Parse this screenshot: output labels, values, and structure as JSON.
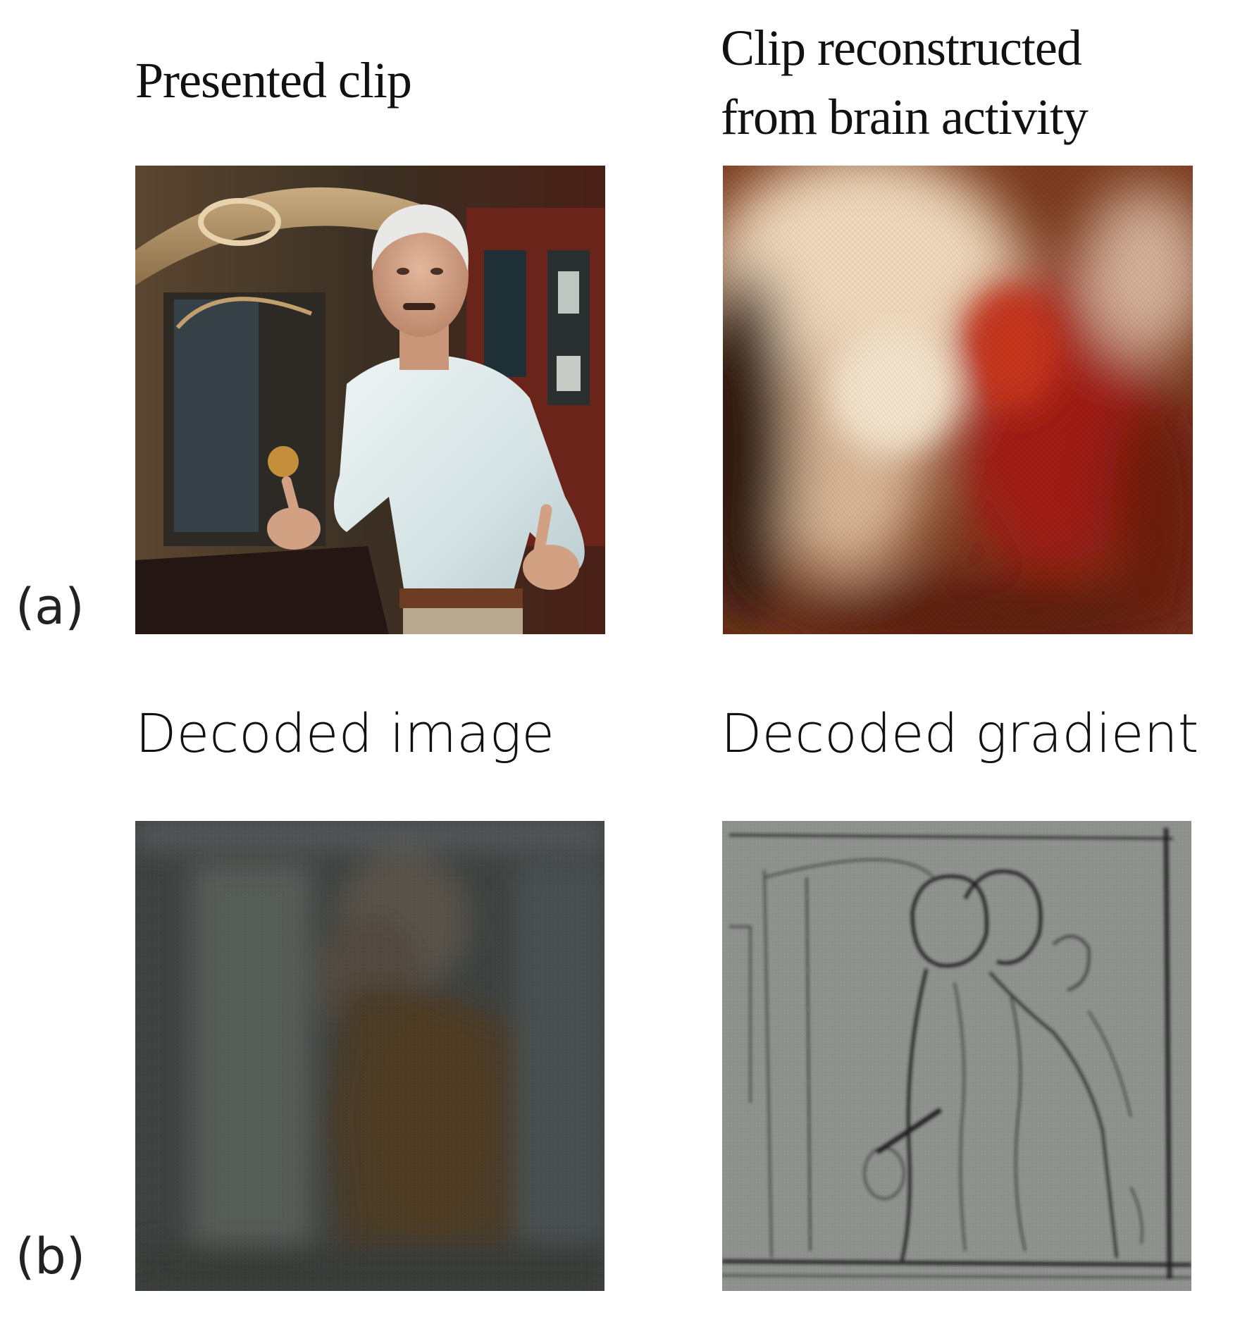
{
  "figure": {
    "panel_a": {
      "label": "(a)",
      "left_title": "Presented clip",
      "right_title_line1": "Clip reconstructed",
      "right_title_line2": "from brain activity"
    },
    "panel_b": {
      "label": "(b)",
      "left_title": "Decoded image",
      "right_title": "Decoded gradient"
    }
  }
}
